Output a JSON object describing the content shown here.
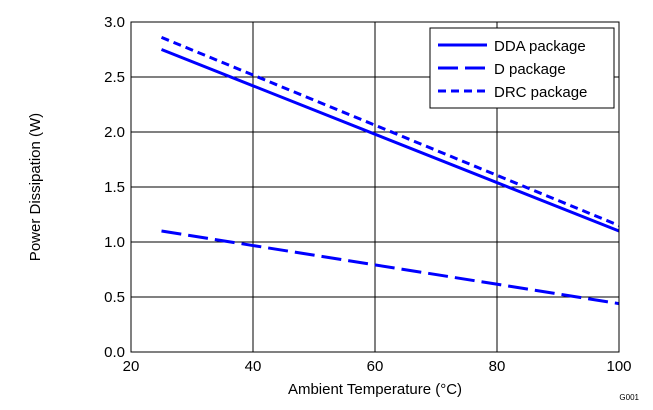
{
  "chart_data": {
    "type": "line",
    "title": "",
    "xlabel": "Ambient Temperature (°C)",
    "ylabel": "Power Dissipation (W)",
    "xlim": [
      20,
      100
    ],
    "ylim": [
      0.0,
      3.0
    ],
    "x_ticks": [
      20,
      40,
      60,
      80,
      100
    ],
    "y_ticks": [
      0.0,
      0.5,
      1.0,
      1.5,
      2.0,
      2.5,
      3.0
    ],
    "x_tick_labels": [
      "20",
      "40",
      "60",
      "80",
      "100"
    ],
    "y_tick_labels": [
      "0.0",
      "0.5",
      "1.0",
      "1.5",
      "2.0",
      "2.5",
      "3.0"
    ],
    "grid": true,
    "legend_position": "top-right",
    "figure_code": "G001",
    "series": [
      {
        "name": "DDA package",
        "style": "solid",
        "color": "#0000FF",
        "x": [
          25,
          100
        ],
        "y": [
          2.75,
          1.1
        ]
      },
      {
        "name": "D package",
        "style": "long-dash",
        "color": "#0000FF",
        "x": [
          25,
          100
        ],
        "y": [
          1.1,
          0.44
        ]
      },
      {
        "name": "DRC package",
        "style": "short-dash",
        "color": "#0000FF",
        "x": [
          25,
          100
        ],
        "y": [
          2.86,
          1.15
        ]
      }
    ]
  }
}
